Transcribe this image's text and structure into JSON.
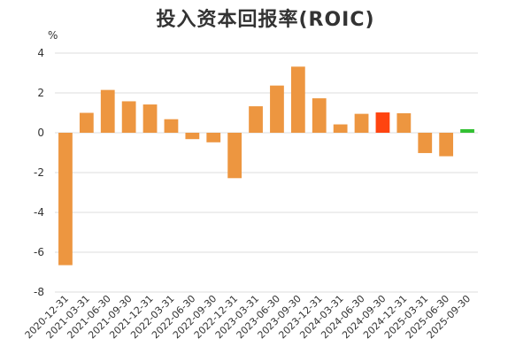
{
  "chart_data": {
    "type": "bar",
    "title": "投入资本回报率(ROIC)",
    "unit": "%",
    "xlabel": "",
    "ylabel": "",
    "ylim": [
      -8,
      4
    ],
    "yticks": [
      4,
      2,
      0,
      -2,
      -4,
      -6,
      -8
    ],
    "grid": true,
    "legend": "none",
    "categories": [
      "2020-12-31",
      "2021-03-31",
      "2021-06-30",
      "2021-09-30",
      "2021-12-31",
      "2022-03-31",
      "2022-06-30",
      "2022-09-30",
      "2022-12-31",
      "2023-03-31",
      "2023-06-30",
      "2023-09-30",
      "2023-12-31",
      "2024-03-31",
      "2024-06-30",
      "2024-09-30",
      "2024-12-31",
      "2025-03-31",
      "2025-06-30",
      "2025-09-30"
    ],
    "values": [
      -6.65,
      1.0,
      2.15,
      1.58,
      1.42,
      0.68,
      -0.32,
      -0.48,
      -2.28,
      1.33,
      2.37,
      3.32,
      1.73,
      0.42,
      0.95,
      1.02,
      0.98,
      -1.02,
      -1.18,
      0.18
    ],
    "colors": {
      "default": "#ED9640",
      "highlight": "#FF4410",
      "latest": "#33C033",
      "grid": "#DDDDDD"
    },
    "highlight_index": 15,
    "latest_index": 19
  }
}
